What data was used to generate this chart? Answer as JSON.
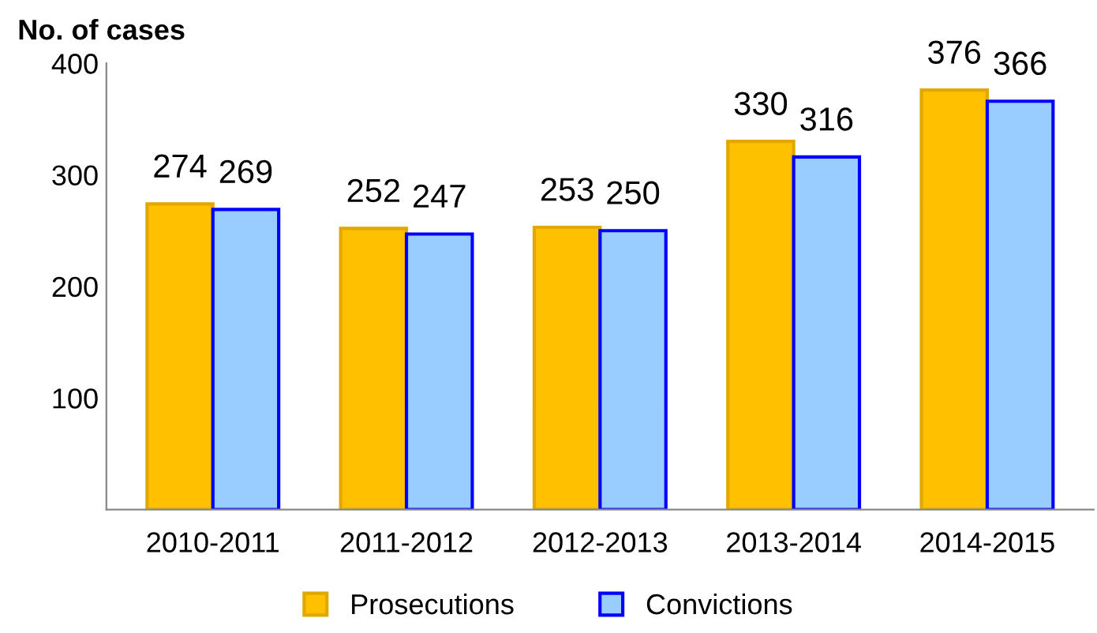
{
  "chart_data": {
    "type": "bar",
    "ylabel": "No. of cases",
    "categories": [
      "2010-2011",
      "2011-2012",
      "2012-2013",
      "2013-2014",
      "2014-2015"
    ],
    "series": [
      {
        "name": "Prosecutions",
        "color": "#ffc000",
        "values": [
          274,
          252,
          253,
          330,
          376
        ]
      },
      {
        "name": "Convictions",
        "color": "#99ccff",
        "values": [
          269,
          247,
          250,
          316,
          366
        ]
      }
    ],
    "ylim": [
      0,
      400
    ],
    "yticks": [
      {
        "value": 0,
        "label": null
      },
      100,
      200,
      300,
      400
    ],
    "data_labels": true,
    "grid": false,
    "legend": "bottom"
  }
}
